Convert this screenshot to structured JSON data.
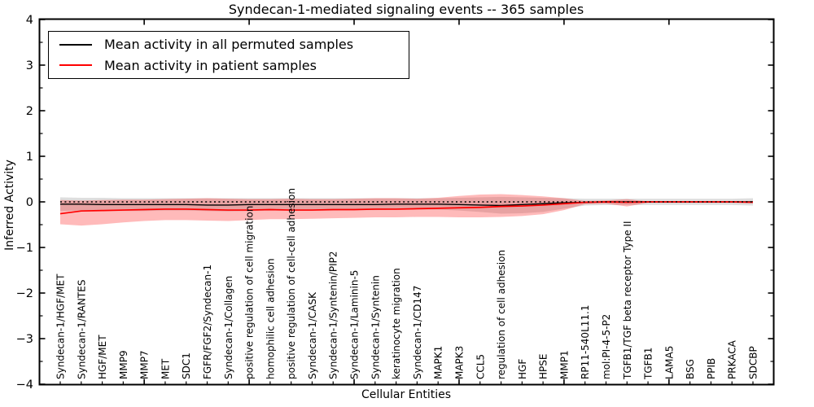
{
  "chart_data": {
    "type": "line",
    "title": "Syndecan-1-mediated signaling events -- 365 samples",
    "xlabel": "Cellular Entities",
    "ylabel": "Inferred Activity",
    "ylim": [
      -4,
      4
    ],
    "yticks": [
      4,
      3,
      2,
      1,
      0,
      -1,
      -2,
      -3,
      -4
    ],
    "grid": false,
    "legend_position": "upper left",
    "zero_line": {
      "y": 0,
      "style": "dotted",
      "color": "#000000"
    },
    "categories": [
      "Syndecan-1/HGF/MET",
      "Syndecan-1/RANTES",
      "HGF/MET",
      "MMP9",
      "MMP7",
      "MET",
      "SDC1",
      "FGFR/FGF2/Syndecan-1",
      "Syndecan-1/Collagen",
      "positive regulation of cell migration",
      "homophilic cell adhesion",
      "positive regulation of cell-cell adhesion",
      "Syndecan-1/CASK",
      "Syndecan-1/Syntenin/PIP2",
      "Syndecan-1/Laminin-5",
      "Syndecan-1/Syntenin",
      "keratinocyte migration",
      "Syndecan-1/CD147",
      "MAPK1",
      "MAPK3",
      "CCL5",
      "regulation of cell adhesion",
      "HGF",
      "HPSE",
      "MMP1",
      "RP11-540L11.1",
      "mol:PI-4-5-P2",
      "TGFB1/TGF beta receptor Type II",
      "TGFB1",
      "LAMA5",
      "BSG",
      "PPIB",
      "PRKACA",
      "SDCBP"
    ],
    "series": [
      {
        "name": "Mean activity in all permuted samples",
        "color": "#000000",
        "band_color": "rgba(0,0,0,0.13)",
        "mean": [
          -0.05,
          -0.05,
          -0.06,
          -0.06,
          -0.06,
          -0.06,
          -0.06,
          -0.07,
          -0.07,
          -0.06,
          -0.06,
          -0.06,
          -0.06,
          -0.06,
          -0.06,
          -0.06,
          -0.05,
          -0.05,
          -0.05,
          -0.06,
          -0.07,
          -0.08,
          -0.06,
          -0.04,
          -0.02,
          -0.01,
          0,
          0,
          0,
          0,
          0,
          0,
          0,
          0
        ],
        "upper": [
          0.1,
          0.09,
          0.09,
          0.08,
          0.08,
          0.08,
          0.08,
          0.08,
          0.08,
          0.08,
          0.08,
          0.08,
          0.08,
          0.08,
          0.08,
          0.08,
          0.08,
          0.08,
          0.08,
          0.09,
          0.1,
          0.11,
          0.1,
          0.09,
          0.08,
          0.07,
          0.07,
          0.07,
          0.07,
          0.07,
          0.07,
          0.07,
          0.07,
          0.08
        ],
        "lower": [
          -0.2,
          -0.19,
          -0.2,
          -0.2,
          -0.2,
          -0.19,
          -0.19,
          -0.2,
          -0.21,
          -0.2,
          -0.19,
          -0.19,
          -0.19,
          -0.19,
          -0.18,
          -0.18,
          -0.17,
          -0.17,
          -0.17,
          -0.19,
          -0.22,
          -0.26,
          -0.25,
          -0.22,
          -0.15,
          -0.08,
          -0.07,
          -0.07,
          -0.07,
          -0.07,
          -0.07,
          -0.07,
          -0.07,
          -0.08
        ]
      },
      {
        "name": "Mean activity in patient samples",
        "color": "#ff0000",
        "band_color": "rgba(255,0,0,0.27)",
        "mean": [
          -0.26,
          -0.2,
          -0.19,
          -0.18,
          -0.17,
          -0.16,
          -0.16,
          -0.17,
          -0.18,
          -0.18,
          -0.17,
          -0.18,
          -0.18,
          -0.17,
          -0.17,
          -0.16,
          -0.16,
          -0.15,
          -0.14,
          -0.13,
          -0.12,
          -0.1,
          -0.09,
          -0.07,
          -0.04,
          -0.01,
          0,
          -0.01,
          0,
          0,
          0,
          0,
          0,
          -0.01
        ],
        "upper": [
          0.04,
          0.03,
          0.04,
          0.05,
          0.05,
          0.06,
          0.07,
          0.08,
          0.07,
          0.06,
          0.06,
          0.07,
          0.06,
          0.06,
          0.07,
          0.08,
          0.08,
          0.07,
          0.09,
          0.13,
          0.16,
          0.17,
          0.15,
          0.12,
          0.08,
          0.02,
          0.03,
          0.06,
          0.01,
          0.01,
          0.01,
          0.01,
          0.01,
          0.02
        ],
        "lower": [
          -0.49,
          -0.52,
          -0.49,
          -0.45,
          -0.42,
          -0.4,
          -0.4,
          -0.41,
          -0.42,
          -0.4,
          -0.38,
          -0.38,
          -0.37,
          -0.36,
          -0.35,
          -0.34,
          -0.34,
          -0.33,
          -0.33,
          -0.34,
          -0.34,
          -0.33,
          -0.31,
          -0.27,
          -0.18,
          -0.05,
          -0.04,
          -0.1,
          -0.02,
          -0.02,
          -0.02,
          -0.02,
          -0.02,
          -0.03
        ]
      }
    ]
  }
}
